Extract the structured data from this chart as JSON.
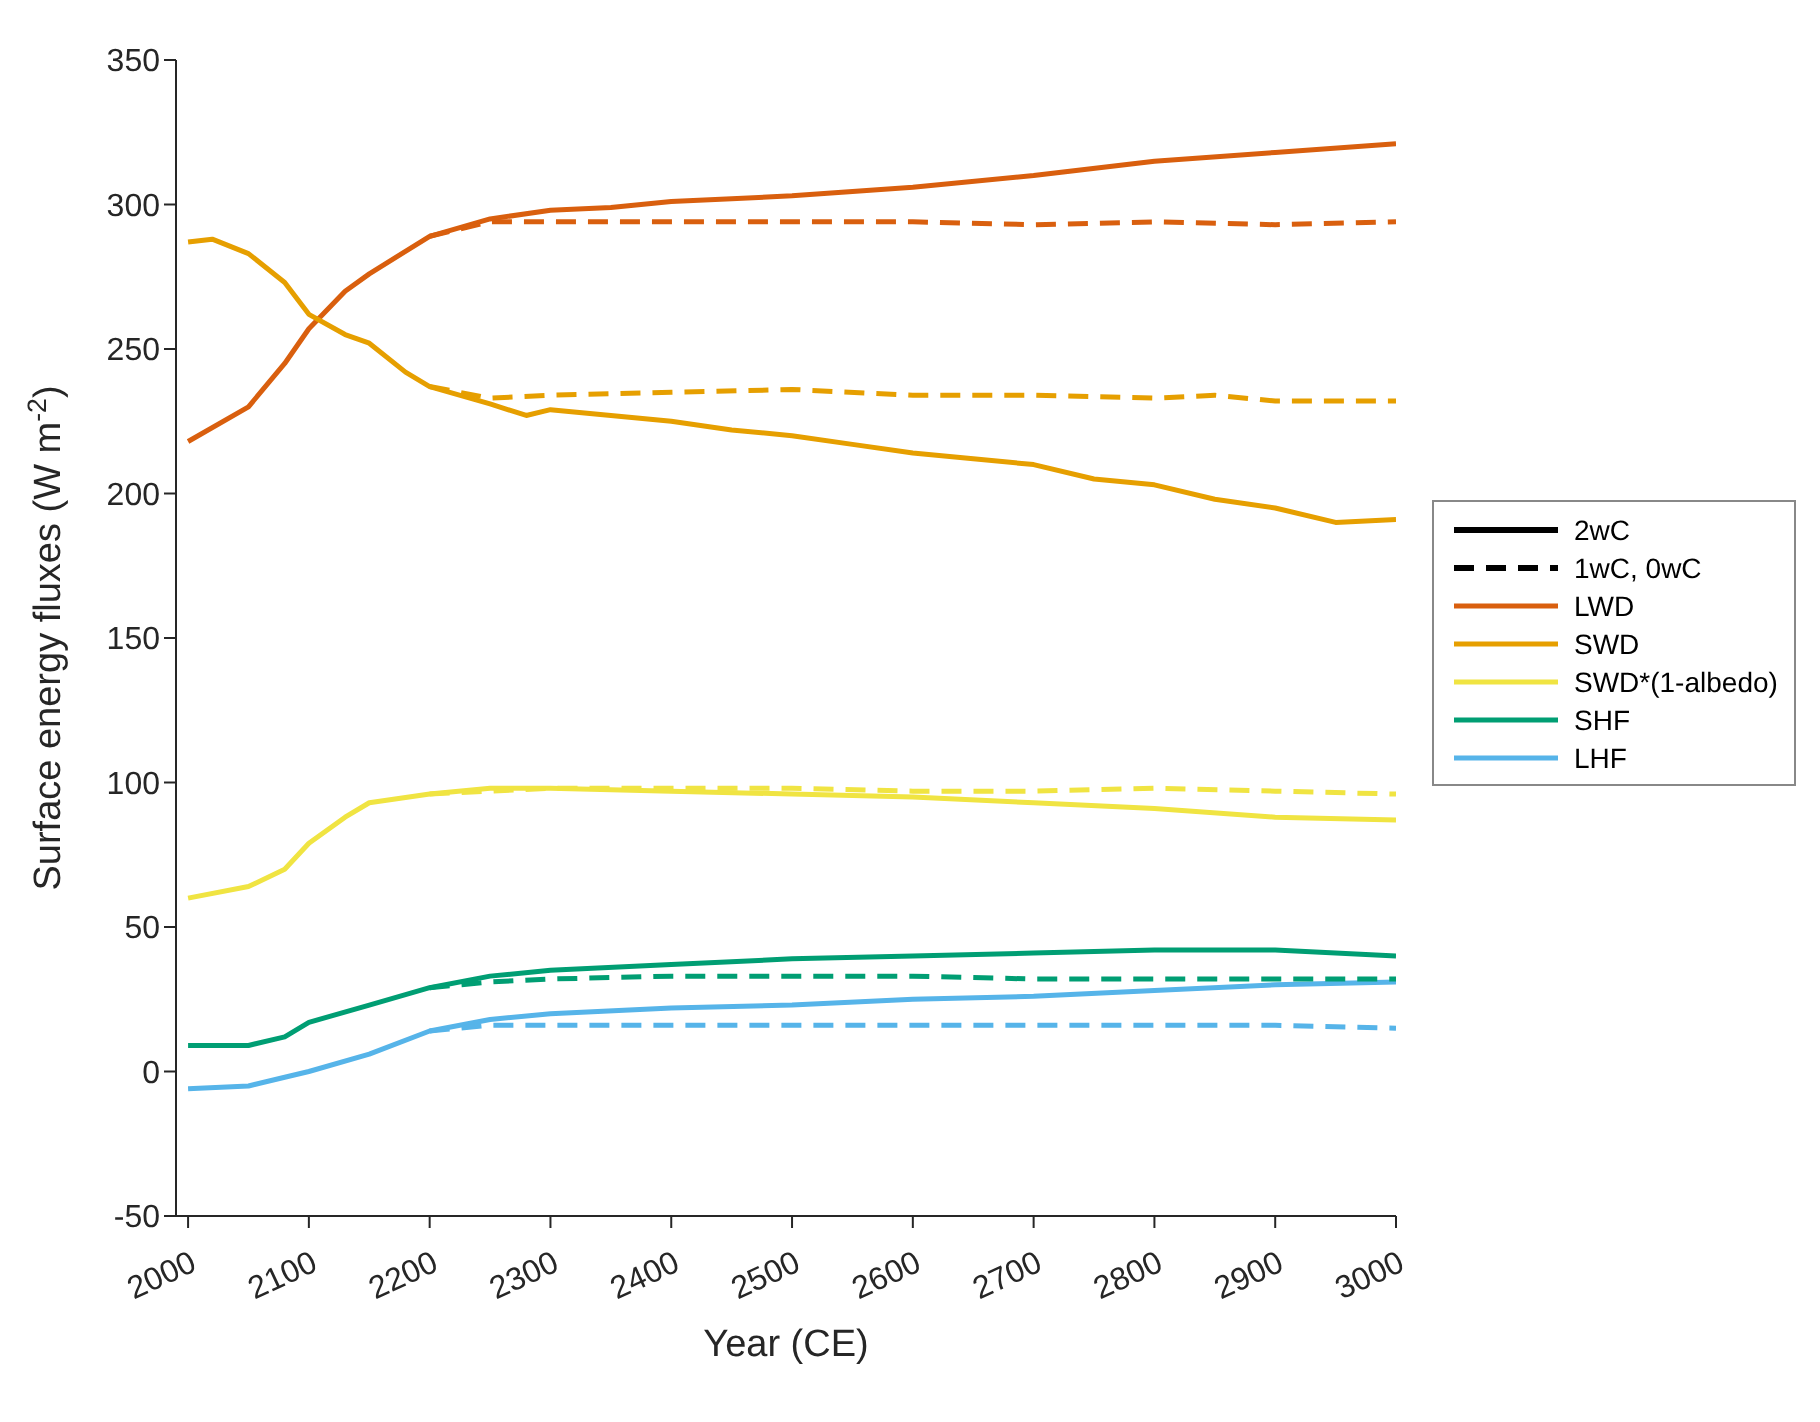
{
  "chart_data": {
    "type": "line",
    "xlabel": "Year (CE)",
    "ylabel": "Surface energy fluxes (W m$^{-2}$)",
    "xlim": [
      1990,
      3000
    ],
    "xticks": [
      2000,
      2100,
      2200,
      2300,
      2400,
      2500,
      2600,
      2700,
      2800,
      2900,
      3000
    ],
    "ylim": [
      -50,
      350
    ],
    "yticks": [
      -50,
      0,
      50,
      100,
      150,
      200,
      250,
      300,
      350
    ],
    "grid": false,
    "legend": "right",
    "marker": "none",
    "series": [
      {
        "name": "2wC",
        "color": "#000000",
        "line_style": "solid"
      },
      {
        "name": "1wC, 0wC",
        "color": "#000000",
        "line_style": "dashed"
      },
      {
        "name": "LWD",
        "color": "#d95f0e",
        "line_style": "solid",
        "x": [
          2000,
          2050,
          2080,
          2100,
          2130,
          2150,
          2200,
          2250,
          2300,
          2350,
          2400,
          2450,
          2500,
          2600,
          2700,
          2800,
          2900,
          3000
        ],
        "values": [
          218,
          230,
          245,
          257,
          270,
          276,
          289,
          295,
          298,
          299,
          301,
          302,
          303,
          306,
          310,
          315,
          318,
          321
        ]
      },
      {
        "name": "SWD",
        "color": "#e69f00",
        "line_style": "solid",
        "x": [
          2000,
          2020,
          2050,
          2080,
          2100,
          2130,
          2150,
          2180,
          2200,
          2250,
          2280,
          2300,
          2350,
          2400,
          2450,
          2500,
          2550,
          2600,
          2650,
          2700,
          2750,
          2800,
          2850,
          2900,
          2950,
          3000
        ],
        "values": [
          287,
          288,
          283,
          273,
          262,
          255,
          252,
          242,
          237,
          231,
          227,
          229,
          227,
          225,
          222,
          220,
          217,
          214,
          212,
          210,
          205,
          203,
          198,
          195,
          190,
          191
        ]
      },
      {
        "name": "SWD*(1-albedo)",
        "color": "#f0e442",
        "line_style": "solid",
        "x": [
          2000,
          2050,
          2080,
          2100,
          2130,
          2150,
          2200,
          2250,
          2300,
          2400,
          2500,
          2600,
          2700,
          2800,
          2900,
          3000
        ],
        "values": [
          60,
          64,
          70,
          79,
          88,
          93,
          96,
          98,
          98,
          97,
          96,
          95,
          93,
          91,
          88,
          87
        ]
      },
      {
        "name": "SHF",
        "color": "#009e73",
        "line_style": "solid",
        "x": [
          2000,
          2050,
          2080,
          2100,
          2150,
          2200,
          2250,
          2300,
          2400,
          2500,
          2600,
          2700,
          2800,
          2900,
          3000
        ],
        "values": [
          9,
          9,
          12,
          17,
          23,
          29,
          33,
          35,
          37,
          39,
          40,
          41,
          42,
          42,
          40
        ]
      },
      {
        "name": "LHF",
        "color": "#56b4e9",
        "line_style": "solid",
        "x": [
          2000,
          2050,
          2080,
          2100,
          2150,
          2200,
          2250,
          2300,
          2400,
          2500,
          2600,
          2700,
          2800,
          2900,
          3000
        ],
        "values": [
          -6,
          -5,
          -2,
          0,
          6,
          14,
          18,
          20,
          22,
          23,
          25,
          26,
          28,
          30,
          31
        ]
      },
      {
        "color": "#d95f0e",
        "line_style": "dashed",
        "x": [
          2200,
          2250,
          2300,
          2400,
          2500,
          2600,
          2700,
          2800,
          2900,
          3000
        ],
        "values": [
          289,
          294,
          294,
          294,
          294,
          294,
          293,
          294,
          293,
          294
        ]
      },
      {
        "color": "#e69f00",
        "line_style": "dashed",
        "x": [
          2200,
          2250,
          2300,
          2400,
          2500,
          2600,
          2700,
          2800,
          2850,
          2900,
          3000
        ],
        "values": [
          237,
          233,
          234,
          235,
          236,
          234,
          234,
          233,
          234,
          232,
          232
        ]
      },
      {
        "color": "#f0e442",
        "line_style": "dashed",
        "x": [
          2200,
          2300,
          2400,
          2500,
          2600,
          2700,
          2800,
          2900,
          3000
        ],
        "values": [
          96,
          98,
          98,
          98,
          97,
          97,
          98,
          97,
          96
        ]
      },
      {
        "color": "#009e73",
        "line_style": "dashed",
        "x": [
          2200,
          2250,
          2300,
          2400,
          2500,
          2600,
          2700,
          2800,
          2900,
          3000
        ],
        "values": [
          29,
          31,
          32,
          33,
          33,
          33,
          32,
          32,
          32,
          32
        ]
      },
      {
        "color": "#56b4e9",
        "line_style": "dashed",
        "x": [
          2200,
          2250,
          2300,
          2400,
          2500,
          2600,
          2700,
          2800,
          2900,
          3000
        ],
        "values": [
          14,
          16,
          16,
          16,
          16,
          16,
          16,
          16,
          16,
          15
        ]
      }
    ]
  }
}
